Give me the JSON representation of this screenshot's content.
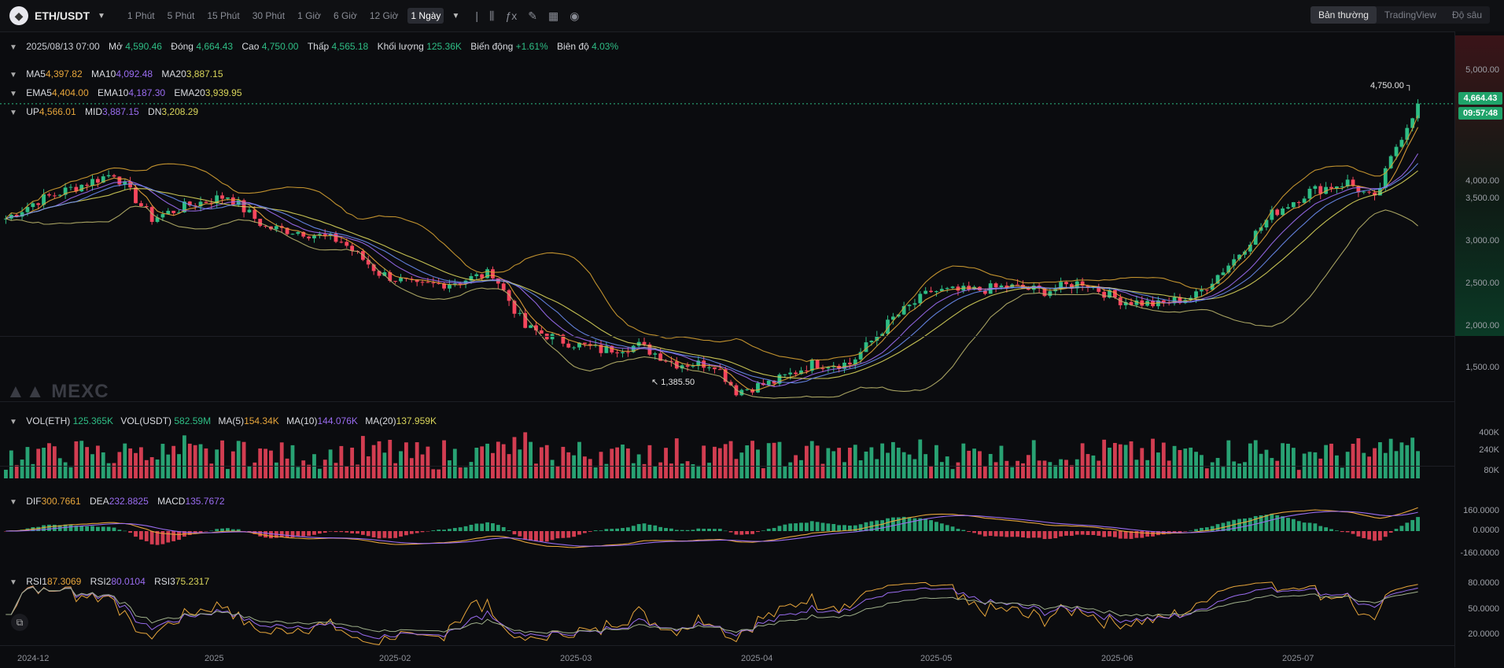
{
  "toolbar": {
    "pair": "ETH/USDT",
    "timeframes": [
      "1 Phút",
      "5 Phút",
      "15 Phút",
      "30 Phút",
      "1 Giờ",
      "6 Giờ",
      "12 Giờ",
      "1 Ngày"
    ],
    "active_timeframe": "1 Ngày",
    "views": [
      "Bản thường",
      "TradingView",
      "Độ sâu"
    ],
    "active_view": "Bản thường"
  },
  "ohlc": {
    "date": "2025/08/13 07:00",
    "open_label": "Mở",
    "open": "4,590.46",
    "close_label": "Đóng",
    "close": "4,664.43",
    "high_label": "Cao",
    "high": "4,750.00",
    "low_label": "Thấp",
    "low": "4,565.18",
    "volume_label": "Khối lượng",
    "volume": "125.36K",
    "change_label": "Biến động",
    "change": "+1.61%",
    "amplitude_label": "Biên độ",
    "amplitude": "4.03%"
  },
  "ma": {
    "ma5_label": "MA5",
    "ma5": "4,397.82",
    "ma10_label": "MA10",
    "ma10": "4,092.48",
    "ma20_label": "MA20",
    "ma20": "3,887.15"
  },
  "ema": {
    "ema5_label": "EMA5",
    "ema5": "4,404.00",
    "ema10_label": "EMA10",
    "ema10": "4,187.30",
    "ema20_label": "EMA20",
    "ema20": "3,939.95"
  },
  "boll": {
    "up_label": "UP",
    "up": "4,566.01",
    "mid_label": "MID",
    "mid": "3,887.15",
    "dn_label": "DN",
    "dn": "3,208.29"
  },
  "vol": {
    "eth_label": "VOL(ETH)",
    "eth": "125.365K",
    "usdt_label": "VOL(USDT)",
    "usdt": "582.59M",
    "ma5_label": "MA(5)",
    "ma5": "154.34K",
    "ma10_label": "MA(10)",
    "ma10": "144.076K",
    "ma20_label": "MA(20)",
    "ma20": "137.959K"
  },
  "macd": {
    "dif_label": "DIF",
    "dif": "300.7661",
    "dea_label": "DEA",
    "dea": "232.8825",
    "macd_label": "MACD",
    "macd": "135.7672"
  },
  "rsi": {
    "rsi1_label": "RSI1",
    "rsi1": "87.3069",
    "rsi2_label": "RSI2",
    "rsi2": "80.0104",
    "rsi3_label": "RSI3",
    "rsi3": "75.2317"
  },
  "price_axis": [
    "5,000.00",
    "4,500.00",
    "4,000.00",
    "3,500.00",
    "3,000.00",
    "2,500.00",
    "2,000.00",
    "1,500.00"
  ],
  "current_price": "4,664.43",
  "countdown": "09:57:48",
  "high_annotation": "4,750.00",
  "low_annotation": "1,385.50",
  "vol_axis": [
    "400K",
    "240K",
    "80K"
  ],
  "macd_axis": [
    "160.0000",
    "0.0000",
    "-160.0000"
  ],
  "rsi_axis": [
    "80.0000",
    "50.0000",
    "20.0000"
  ],
  "date_axis": [
    "2024-12",
    "2025",
    "2025-02",
    "2025-03",
    "2025-04",
    "2025-05",
    "2025-06",
    "2025-07"
  ],
  "watermark": "MEXC",
  "colors": {
    "up": "#2ebd85",
    "down": "#f6465d",
    "ma5": "#e6a53b",
    "ma10": "#9a6cf0",
    "ma20": "#d8d45a"
  },
  "chart_data": {
    "type": "candlestick",
    "ylim": [
      1300,
      5200
    ],
    "anchors": [
      [
        "2024-11-25",
        3400
      ],
      [
        "2024-12-01",
        3600
      ],
      [
        "2024-12-08",
        3750
      ],
      [
        "2024-12-15",
        3900
      ],
      [
        "2024-12-22",
        3400
      ],
      [
        "2024-12-29",
        3550
      ],
      [
        "2025-01-05",
        3650
      ],
      [
        "2025-01-12",
        3300
      ],
      [
        "2025-01-19",
        3250
      ],
      [
        "2025-01-26",
        3150
      ],
      [
        "2025-02-02",
        2800
      ],
      [
        "2025-02-09",
        2650
      ],
      [
        "2025-02-16",
        2700
      ],
      [
        "2025-02-23",
        2800
      ],
      [
        "2025-03-01",
        2200
      ],
      [
        "2025-03-08",
        2050
      ],
      [
        "2025-03-15",
        1950
      ],
      [
        "2025-03-22",
        2000
      ],
      [
        "2025-03-29",
        1800
      ],
      [
        "2025-04-05",
        1800
      ],
      [
        "2025-04-09",
        1500
      ],
      [
        "2025-04-16",
        1600
      ],
      [
        "2025-04-23",
        1800
      ],
      [
        "2025-04-30",
        1800
      ],
      [
        "2025-05-08",
        2300
      ],
      [
        "2025-05-15",
        2600
      ],
      [
        "2025-05-22",
        2600
      ],
      [
        "2025-05-29",
        2650
      ],
      [
        "2025-06-05",
        2600
      ],
      [
        "2025-06-12",
        2700
      ],
      [
        "2025-06-19",
        2500
      ],
      [
        "2025-06-26",
        2450
      ],
      [
        "2025-07-03",
        2550
      ],
      [
        "2025-07-10",
        2950
      ],
      [
        "2025-07-17",
        3450
      ],
      [
        "2025-07-24",
        3700
      ],
      [
        "2025-07-31",
        3800
      ],
      [
        "2025-08-05",
        3600
      ],
      [
        "2025-08-09",
        4200
      ],
      [
        "2025-08-13",
        4664
      ]
    ]
  }
}
